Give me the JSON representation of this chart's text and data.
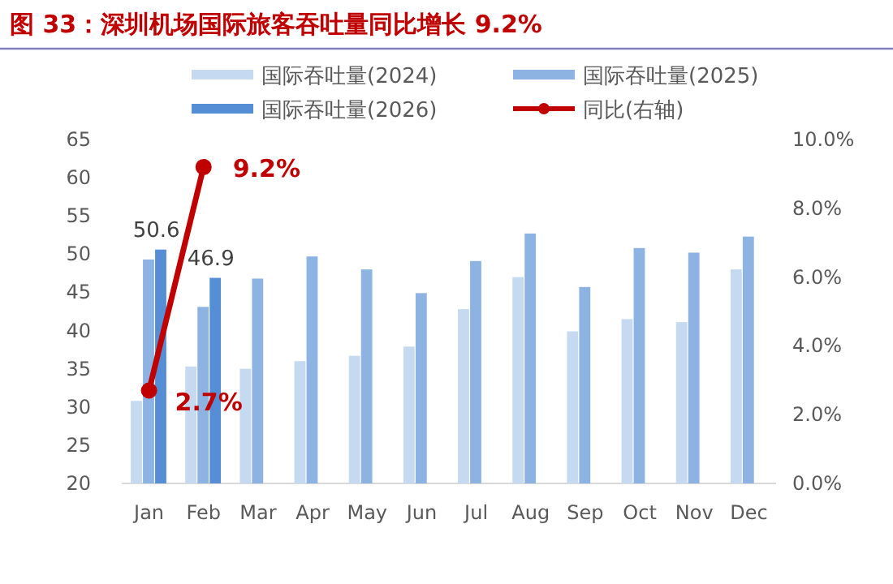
{
  "chart_data": {
    "type": "bar",
    "title": "图 33：深圳机场国际旅客吞吐量同比增长 9.2%",
    "categories": [
      "Jan",
      "Feb",
      "Mar",
      "Apr",
      "May",
      "Jun",
      "Jul",
      "Aug",
      "Sep",
      "Oct",
      "Nov",
      "Dec"
    ],
    "series": [
      {
        "name": "国际吞吐量(2024)",
        "color": "#c5d9f1",
        "values": [
          30.8,
          35.3,
          35.0,
          36.0,
          36.7,
          37.9,
          42.8,
          47.0,
          39.9,
          41.5,
          41.1,
          48.0
        ]
      },
      {
        "name": "国际吞吐量(2025)",
        "color": "#8db3e2",
        "values": [
          49.3,
          43.1,
          46.8,
          49.7,
          48.0,
          44.9,
          49.1,
          52.7,
          45.7,
          50.8,
          50.2,
          52.3
        ]
      },
      {
        "name": "国际吞吐量(2026)",
        "color": "#558ed5",
        "values": [
          50.6,
          46.9,
          null,
          null,
          null,
          null,
          null,
          null,
          null,
          null,
          null,
          null
        ],
        "value_labels": [
          "50.6",
          "46.9",
          null,
          null,
          null,
          null,
          null,
          null,
          null,
          null,
          null,
          null
        ]
      },
      {
        "name": "同比(右轴)",
        "type": "line",
        "axis": "y2",
        "color": "#c00000",
        "values": [
          2.7,
          9.2,
          null,
          null,
          null,
          null,
          null,
          null,
          null,
          null,
          null,
          null
        ],
        "value_labels": [
          "2.7%",
          "9.2%",
          null,
          null,
          null,
          null,
          null,
          null,
          null,
          null,
          null,
          null
        ]
      }
    ],
    "ylim": [
      20,
      65
    ],
    "yticks": [
      20,
      25,
      30,
      35,
      40,
      45,
      50,
      55,
      60,
      65
    ],
    "y2lim": [
      0,
      10
    ],
    "y2ticks": [
      {
        "value": 0,
        "label": "0.0%"
      },
      {
        "value": 2,
        "label": "2.0%"
      },
      {
        "value": 4,
        "label": "4.0%"
      },
      {
        "value": 6,
        "label": "6.0%"
      },
      {
        "value": 8,
        "label": "8.0%"
      },
      {
        "value": 10,
        "label": "10.0%"
      }
    ],
    "legend": "top",
    "grid": false,
    "marker": "circle"
  }
}
